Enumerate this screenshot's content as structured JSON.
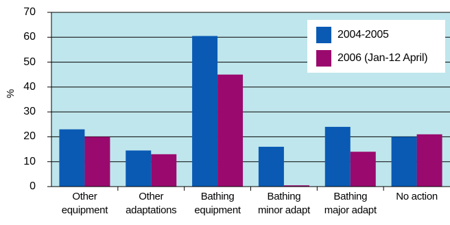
{
  "chart_data": {
    "type": "bar",
    "ylabel": "%",
    "ylim": [
      0,
      70
    ],
    "yticks": [
      0,
      10,
      20,
      30,
      40,
      50,
      60,
      70
    ],
    "grid": true,
    "legend_position": "top-right",
    "categories": [
      [
        "Other",
        "equipment"
      ],
      [
        "Other",
        "adaptations"
      ],
      [
        "Bathing",
        "equipment"
      ],
      [
        "Bathing",
        "minor adapt"
      ],
      [
        "Bathing",
        "major adapt"
      ],
      [
        "No action",
        ""
      ]
    ],
    "series": [
      {
        "name": "2004-2005",
        "color": "#0a5ab4",
        "values": [
          23,
          14.5,
          60.5,
          16,
          24,
          20
        ]
      },
      {
        "name": "2006 (Jan-12 April)",
        "color": "#9a0a6e",
        "values": [
          20,
          13,
          45,
          0.5,
          14,
          21
        ]
      }
    ],
    "plot_background": "#bfe6ec"
  }
}
